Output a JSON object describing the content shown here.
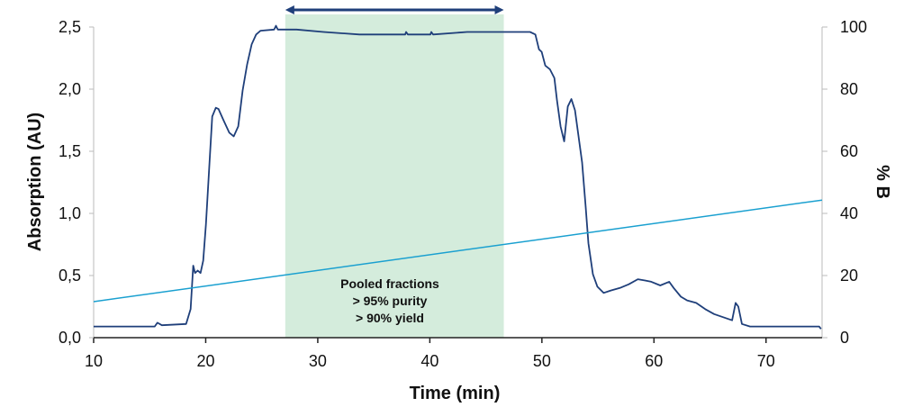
{
  "chart_data": {
    "type": "line",
    "xlabel": "Time (min)",
    "ylabel": "Absorption (AU)",
    "y2label": "% B",
    "xlim": [
      10,
      75
    ],
    "ylim": [
      0,
      2.5
    ],
    "y2lim": [
      0,
      100
    ],
    "x_ticks": [
      "10",
      "20",
      "30",
      "40",
      "50",
      "60",
      "70"
    ],
    "y_ticks": [
      "0,0",
      "0,5",
      "1,0",
      "1,5",
      "2,0",
      "2,5"
    ],
    "y2_ticks": [
      "0",
      "20",
      "40",
      "60",
      "80",
      "100"
    ],
    "grid": false,
    "colors": {
      "absorption": "#1f3f7a",
      "gradient": "#1aa0d0",
      "pooled_region": "#d4ecdc",
      "arrow": "#1f3f7a"
    },
    "pooled_region": {
      "x_start": 27.1,
      "x_end": 46.6
    },
    "annotation": [
      "Pooled fractions",
      "> 95%  purity",
      "> 90%  yield"
    ],
    "series": [
      {
        "axis": "left",
        "x": [
          10.0,
          15.45,
          15.69,
          16.09,
          18.25,
          18.65,
          18.89,
          19.05,
          19.29,
          19.54,
          19.78,
          20.02,
          20.34,
          20.58,
          20.9,
          21.14,
          21.54,
          22.1,
          22.5,
          22.9,
          23.3,
          23.7,
          24.1,
          24.5,
          24.9,
          26.11,
          26.27,
          26.43,
          28.11,
          30.51,
          33.72,
          36.92,
          37.8,
          37.88,
          38.04,
          39.33,
          40.05,
          40.13,
          40.29,
          43.33,
          48.94,
          49.42,
          49.74,
          49.98,
          50.3,
          50.71,
          51.11,
          51.35,
          51.67,
          51.99,
          52.31,
          52.63,
          52.95,
          53.59,
          53.91,
          54.15,
          54.55,
          54.95,
          55.51,
          56.15,
          56.96,
          57.76,
          58.56,
          59.2,
          59.76,
          60.56,
          61.36,
          61.76,
          62.4,
          62.96,
          63.77,
          64.57,
          65.37,
          66.97,
          67.29,
          67.53,
          67.85,
          68.57,
          74.74,
          74.9
        ],
        "y": [
          0.09,
          0.09,
          0.12,
          0.1,
          0.11,
          0.23,
          0.58,
          0.52,
          0.54,
          0.52,
          0.62,
          0.91,
          1.41,
          1.78,
          1.85,
          1.84,
          1.76,
          1.65,
          1.62,
          1.7,
          1.99,
          2.2,
          2.36,
          2.44,
          2.47,
          2.48,
          2.51,
          2.48,
          2.48,
          2.46,
          2.44,
          2.44,
          2.44,
          2.46,
          2.44,
          2.44,
          2.44,
          2.46,
          2.44,
          2.46,
          2.46,
          2.44,
          2.32,
          2.3,
          2.19,
          2.16,
          2.09,
          1.91,
          1.7,
          1.58,
          1.86,
          1.92,
          1.83,
          1.41,
          1.05,
          0.76,
          0.51,
          0.41,
          0.36,
          0.38,
          0.4,
          0.43,
          0.47,
          0.46,
          0.45,
          0.42,
          0.45,
          0.4,
          0.33,
          0.3,
          0.28,
          0.23,
          0.19,
          0.14,
          0.28,
          0.25,
          0.11,
          0.09,
          0.09,
          0.07
        ]
      },
      {
        "axis": "right",
        "x": [
          10,
          75
        ],
        "y": [
          11.6,
          44.3
        ]
      }
    ]
  }
}
